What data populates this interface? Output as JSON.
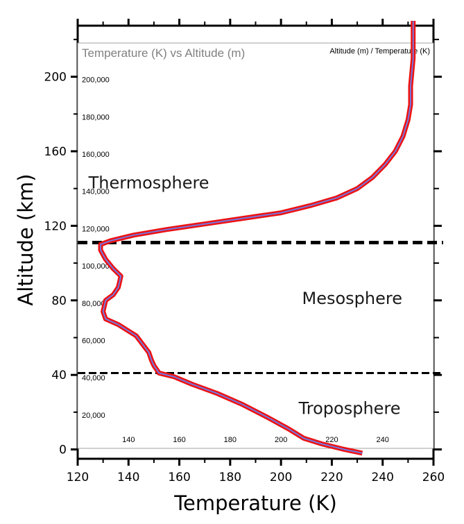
{
  "chart_data": {
    "type": "line",
    "title": "",
    "xlabel": "Temperature (K)",
    "ylabel": "Altitude (km)",
    "xlim": [
      120,
      260
    ],
    "ylim": [
      -5,
      230
    ],
    "x_ticks": [
      120,
      140,
      160,
      180,
      200,
      220,
      240,
      260
    ],
    "y_ticks": [
      0,
      40,
      80,
      120,
      160,
      200
    ],
    "grid": true,
    "inner_panel": {
      "title": "Temperature (K) vs Altitude (m)",
      "legend": "Altitude (m) / Temperature (K)",
      "x_ticks": [
        "140",
        "160",
        "180",
        "200",
        "220",
        "240"
      ],
      "x_tick_values": [
        140,
        160,
        180,
        200,
        220,
        240
      ],
      "y_ticks": [
        "20,000",
        "40,000",
        "60,000",
        "80,000",
        "100,000",
        "120,000",
        "140,000",
        "160,000",
        "180,000",
        "200,000"
      ],
      "y_tick_values_km": [
        20,
        40,
        60,
        80,
        100,
        120,
        140,
        160,
        180,
        200
      ]
    },
    "boundaries_km": [
      111,
      41
    ],
    "layers": [
      {
        "name": "Thermosphere",
        "temp": 148,
        "alt": 140
      },
      {
        "name": "Mesosphere",
        "temp": 228,
        "alt": 78
      },
      {
        "name": "Troposphere",
        "temp": 227,
        "alt": 19
      }
    ],
    "series": [
      {
        "x": [
          232,
          225,
          216,
          209,
          203,
          195,
          185,
          175,
          165,
          158,
          152,
          150,
          149,
          148,
          143,
          136,
          131,
          130,
          131,
          134,
          136,
          137,
          134,
          131,
          129,
          129,
          133,
          142,
          155,
          170,
          185,
          200,
          212,
          222,
          230,
          236,
          241,
          245,
          248,
          250,
          251,
          251,
          252,
          252
        ],
        "y": [
          -2,
          0,
          3,
          6,
          11,
          17,
          24,
          30,
          35,
          39,
          41,
          45,
          48,
          52,
          61,
          67,
          70,
          74,
          80,
          83,
          87,
          93,
          97,
          102,
          107,
          110,
          112,
          115,
          118,
          121,
          124,
          127,
          131,
          135,
          140,
          146,
          153,
          160,
          168,
          177,
          185,
          195,
          210,
          230
        ]
      }
    ],
    "colors": {
      "outer_line": "#ee1111",
      "inner_line": "#7777dd",
      "grid": "#c8c8c8",
      "boundary": "#000000",
      "title_gray": "#808080"
    }
  }
}
